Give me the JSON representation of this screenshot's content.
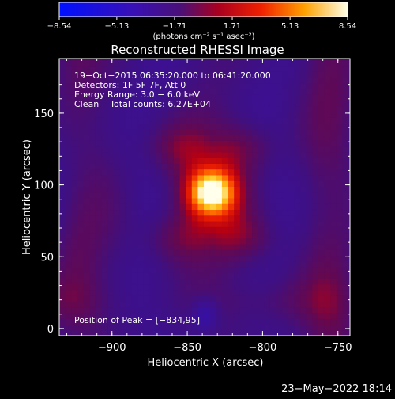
{
  "chart_data": {
    "type": "heatmap",
    "title": "Reconstructed RHESSI Image",
    "xlabel": "Heliocentric X (arcsec)",
    "ylabel": "Heliocentric Y (arcsec)",
    "xlim": [
      -935,
      -742
    ],
    "ylim": [
      -5,
      188
    ],
    "x_ticks": [
      -900,
      -850,
      -800,
      -750
    ],
    "x_tick_labels": [
      "−900",
      "−850",
      "−800",
      "−750"
    ],
    "y_ticks": [
      0,
      50,
      100,
      150
    ],
    "y_tick_labels": [
      "0",
      "50",
      "100",
      "150"
    ],
    "colorbar": {
      "min": -8.54,
      "max": 8.54,
      "ticks": [
        -8.54,
        -5.13,
        -1.71,
        1.71,
        5.13,
        8.54
      ],
      "tick_labels": [
        "−8.54",
        "−5.13",
        "−1.71",
        "1.71",
        "5.13",
        "8.54"
      ],
      "unit_label": "(photons cm⁻² s⁻¹ asec⁻²)"
    },
    "annotations": [
      "19−Oct−2015 06:35:20.000 to 06:41:20.000",
      "Detectors: 1F 5F 7F, Att 0",
      "Energy Range: 3.0 − 6.0 keV",
      "Clean    Total counts: 6.27E+04"
    ],
    "peak_label": "Position of Peak = [−834,95]",
    "peak": [
      -834,
      95
    ],
    "grid": false
  },
  "footer": {
    "timestamp": "23−May−2022 18:14"
  },
  "colors": {
    "background": "#000000",
    "foreground": "#ffffff",
    "colormap": [
      "#0000ff",
      "#3a0aa0",
      "#4a1070",
      "#c00000",
      "#ff4000",
      "#ffa000",
      "#ffffff"
    ]
  }
}
